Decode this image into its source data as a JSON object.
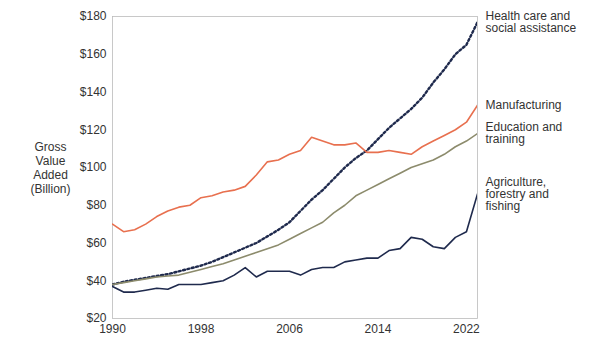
{
  "chart_data": {
    "type": "line",
    "ylabel": "Gross Value Added (Billion)",
    "x": [
      1990,
      1991,
      1992,
      1993,
      1994,
      1995,
      1996,
      1997,
      1998,
      1999,
      2000,
      2001,
      2002,
      2003,
      2004,
      2005,
      2006,
      2007,
      2008,
      2009,
      2010,
      2011,
      2012,
      2013,
      2014,
      2015,
      2016,
      2017,
      2018,
      2019,
      2020,
      2021,
      2022,
      2023
    ],
    "series": [
      {
        "name": "Health care and social assistance",
        "color": "#1f2a4d",
        "line_style": "dotted",
        "values": [
          38,
          39.5,
          40.5,
          41.5,
          42.5,
          43.5,
          45,
          46.5,
          48,
          50,
          52.5,
          55,
          57.5,
          60,
          63.5,
          67,
          71,
          77,
          83,
          88,
          94,
          100,
          105,
          109,
          115,
          121,
          126,
          131,
          137,
          145,
          152,
          160,
          165,
          177
        ]
      },
      {
        "name": "Manufacturing",
        "color": "#e8704f",
        "line_style": "solid",
        "values": [
          70,
          66,
          67,
          70,
          74,
          77,
          79,
          80,
          84,
          85,
          87,
          88,
          90,
          96,
          103,
          104,
          107,
          109,
          116,
          114,
          112,
          112,
          113,
          108,
          108,
          109,
          108,
          107,
          111,
          114,
          117,
          120,
          124,
          133
        ]
      },
      {
        "name": "Education and training",
        "color": "#8c8b6c",
        "line_style": "solid",
        "values": [
          38,
          39,
          40,
          41,
          42,
          42.5,
          43,
          44.5,
          46,
          47.5,
          49,
          51,
          53,
          55,
          57,
          59,
          62,
          65,
          68,
          71,
          76,
          80,
          85,
          88,
          91,
          94,
          97,
          100,
          102,
          104,
          107,
          111,
          114,
          118
        ]
      },
      {
        "name": "Agriculture, forestry and fishing",
        "color": "#1f2a4d",
        "line_style": "solid",
        "values": [
          37,
          34,
          34,
          35,
          36,
          35.5,
          38,
          38,
          38,
          39,
          40,
          43,
          47,
          42,
          45,
          45,
          45,
          43,
          46,
          47,
          47,
          50,
          51,
          52,
          52,
          56,
          57,
          63,
          62,
          58,
          57,
          63,
          66,
          86
        ]
      }
    ],
    "xlim": [
      1990,
      2023
    ],
    "xticks": [
      1990,
      1998,
      2006,
      2014,
      2022
    ],
    "ylim": [
      20,
      180
    ],
    "yticks": [
      {
        "value": 20,
        "label": "$20"
      },
      {
        "value": 40,
        "label": "$40"
      },
      {
        "value": 60,
        "label": "$60"
      },
      {
        "value": 80,
        "label": "$80"
      },
      {
        "value": 100,
        "label": "$100"
      },
      {
        "value": 120,
        "label": "$120"
      },
      {
        "value": 140,
        "label": "$140"
      },
      {
        "value": 160,
        "label": "$160"
      },
      {
        "value": 180,
        "label": "$180"
      }
    ],
    "grid": false
  }
}
